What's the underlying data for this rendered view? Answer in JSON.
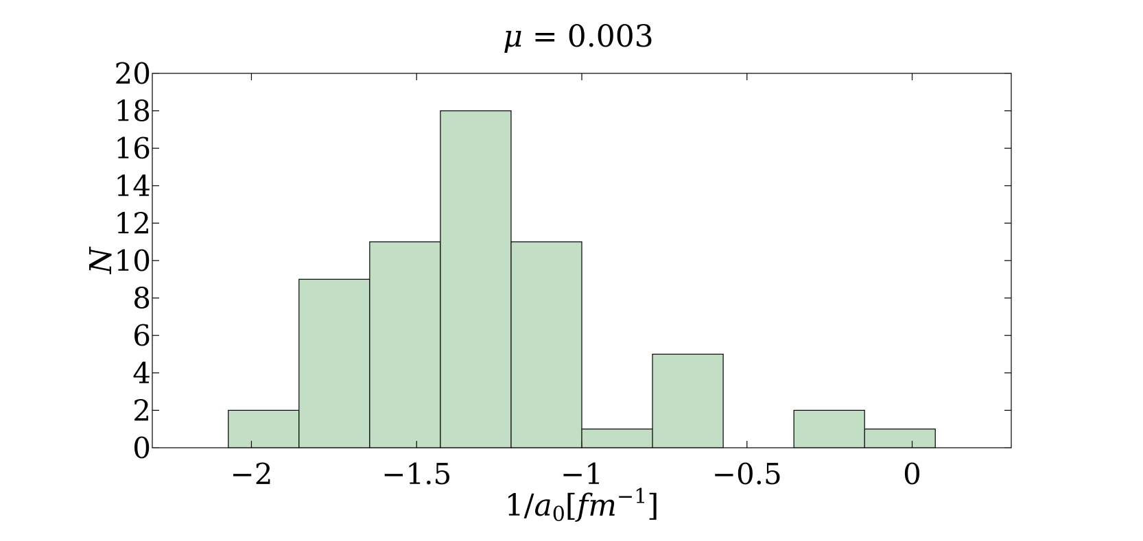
{
  "chart_data": {
    "type": "bar",
    "title": {
      "symbol": "μ",
      "rest": " = 0.003"
    },
    "xlabel": {
      "prefix": "1/",
      "var": "a",
      "sub": "0",
      "open": "[",
      "unit": "fm",
      "sup": "−1",
      "close": "]"
    },
    "ylabel": "N",
    "xlim": [
      -2.3,
      0.3
    ],
    "ylim": [
      0,
      20
    ],
    "xticks": [
      -2,
      -1.5,
      -1,
      -0.5,
      0
    ],
    "xtick_labels": [
      "−2",
      "−1.5",
      "−1",
      "−0.5",
      "0"
    ],
    "yticks": [
      0,
      2,
      4,
      6,
      8,
      10,
      12,
      14,
      16,
      18,
      20
    ],
    "ytick_labels": [
      "0",
      "2",
      "4",
      "6",
      "8",
      "10",
      "12",
      "14",
      "16",
      "18",
      "20"
    ],
    "bin_edges": [
      -2.07,
      -1.856,
      -1.642,
      -1.428,
      -1.214,
      -1.0,
      -0.786,
      -0.572,
      -0.358,
      -0.144,
      0.07
    ],
    "values": [
      2,
      9,
      11,
      18,
      11,
      1,
      5,
      0,
      2,
      1
    ],
    "bar_color": "#c2dfc6",
    "edge_color": "#000000",
    "grid": false
  }
}
